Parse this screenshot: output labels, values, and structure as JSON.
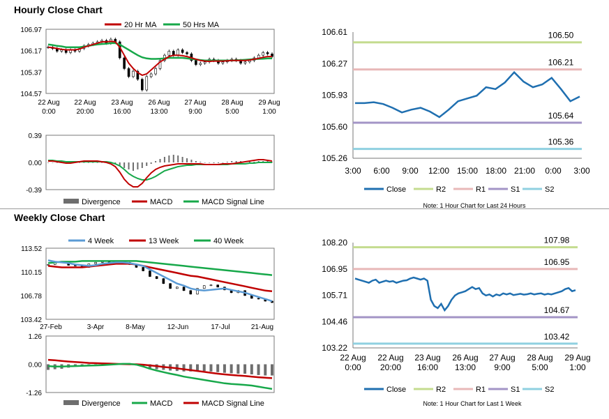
{
  "page": {
    "hourly_title": "Hourly Close Chart",
    "weekly_title": "Weekly Close Chart"
  },
  "colors": {
    "red": "#c00000",
    "green": "#17a84a",
    "blue": "#5b9bd5",
    "close_blue": "#1f6fb0",
    "r2": "#c4dc8f",
    "r1": "#e8b8b8",
    "s1": "#a394c6",
    "s2": "#8fd0e0",
    "bar": "#6e6e6e"
  },
  "chart_data": [
    {
      "id": "hourly_price",
      "type": "line",
      "yticks": [
        "106.97",
        "106.17",
        "105.37",
        "104.57"
      ],
      "ylim": [
        104.57,
        106.97
      ],
      "xticks": [
        [
          "22 Aug",
          "0:00"
        ],
        [
          "22 Aug",
          "20:00"
        ],
        [
          "23 Aug",
          "16:00"
        ],
        [
          "26 Aug",
          "13:00"
        ],
        [
          "27 Aug",
          "9:00"
        ],
        [
          "28 Aug",
          "5:00"
        ],
        [
          "29 Aug",
          "1:00"
        ]
      ],
      "legend": [
        "20 Hr MA",
        "50 Hrs MA"
      ],
      "close": [
        106.3,
        106.25,
        106.15,
        106.2,
        106.1,
        106.2,
        106.15,
        106.25,
        106.35,
        106.4,
        106.45,
        106.5,
        106.55,
        106.45,
        106.6,
        106.5,
        105.9,
        105.5,
        105.2,
        105.4,
        105.1,
        104.7,
        105.2,
        105.3,
        105.5,
        105.8,
        106.0,
        106.15,
        106.0,
        106.2,
        106.1,
        106.05,
        105.8,
        105.65,
        105.7,
        105.75,
        105.85,
        105.8,
        105.7,
        105.75,
        105.8,
        105.85,
        105.8,
        105.7,
        105.75,
        105.8,
        105.9,
        106.0,
        106.1,
        106.05,
        105.95
      ],
      "ma20": [
        106.3,
        106.28,
        106.25,
        106.22,
        106.2,
        106.2,
        106.2,
        106.23,
        106.3,
        106.35,
        106.4,
        106.45,
        106.5,
        106.5,
        106.52,
        106.5,
        106.3,
        106.0,
        105.7,
        105.5,
        105.35,
        105.25,
        105.3,
        105.45,
        105.6,
        105.75,
        105.85,
        105.95,
        106.0,
        106.0,
        105.98,
        105.95,
        105.9,
        105.85,
        105.8,
        105.78,
        105.77,
        105.78,
        105.78,
        105.78,
        105.79,
        105.8,
        105.8,
        105.8,
        105.8,
        105.82,
        105.85,
        105.88,
        105.92,
        105.95,
        105.95
      ],
      "ma50": [
        106.4,
        106.38,
        106.35,
        106.33,
        106.3,
        106.3,
        106.3,
        106.3,
        106.32,
        106.35,
        106.38,
        106.4,
        106.42,
        106.43,
        106.45,
        106.45,
        106.4,
        106.3,
        106.2,
        106.1,
        106.0,
        105.92,
        105.88,
        105.86,
        105.86,
        105.87,
        105.88,
        105.9,
        105.9,
        105.9,
        105.9,
        105.88,
        105.86,
        105.84,
        105.82,
        105.8,
        105.8,
        105.8,
        105.8,
        105.8,
        105.8,
        105.8,
        105.81,
        105.82,
        105.83,
        105.84,
        105.85,
        105.86,
        105.87,
        105.88,
        105.88
      ]
    },
    {
      "id": "hourly_macd",
      "type": "bar",
      "yticks": [
        "0.39",
        "0.00",
        "-0.39"
      ],
      "ylim": [
        -0.39,
        0.39
      ],
      "legend": [
        "Divergence",
        "MACD",
        "MACD Signal Line"
      ],
      "divergence": [
        0,
        0,
        0,
        0,
        0,
        0,
        0,
        0,
        0,
        0,
        0,
        0,
        0,
        0,
        0,
        -0.02,
        -0.05,
        -0.08,
        -0.1,
        -0.12,
        -0.1,
        -0.08,
        -0.05,
        -0.02,
        0.02,
        0.05,
        0.08,
        0.1,
        0.11,
        0.1,
        0.08,
        0.06,
        0.04,
        0.02,
        0.01,
        0.0,
        0.0,
        -0.01,
        -0.01,
        0.0,
        0.01,
        0.02,
        0.02,
        0.02,
        0.01,
        0.01,
        0.01,
        0.02,
        0.02,
        0.02,
        0.01
      ],
      "macd": [
        0.02,
        0.02,
        0.01,
        0.0,
        -0.01,
        -0.01,
        0.0,
        0.01,
        0.02,
        0.02,
        0.02,
        0.02,
        0.01,
        0.0,
        -0.02,
        -0.06,
        -0.14,
        -0.24,
        -0.31,
        -0.35,
        -0.35,
        -0.3,
        -0.22,
        -0.15,
        -0.1,
        -0.07,
        -0.05,
        -0.04,
        -0.03,
        -0.02,
        -0.02,
        -0.02,
        -0.02,
        -0.02,
        -0.02,
        -0.03,
        -0.03,
        -0.03,
        -0.03,
        -0.02,
        -0.02,
        -0.02,
        -0.01,
        0.0,
        0.01,
        0.02,
        0.03,
        0.04,
        0.04,
        0.03,
        0.02
      ],
      "signal": [
        0.03,
        0.03,
        0.02,
        0.02,
        0.01,
        0.01,
        0.01,
        0.01,
        0.01,
        0.01,
        0.01,
        0.01,
        0.01,
        0.01,
        0.0,
        -0.02,
        -0.05,
        -0.1,
        -0.16,
        -0.2,
        -0.23,
        -0.25,
        -0.25,
        -0.23,
        -0.2,
        -0.16,
        -0.12,
        -0.1,
        -0.08,
        -0.06,
        -0.05,
        -0.04,
        -0.04,
        -0.03,
        -0.03,
        -0.03,
        -0.03,
        -0.03,
        -0.03,
        -0.03,
        -0.03,
        -0.02,
        -0.02,
        -0.02,
        -0.02,
        -0.01,
        -0.01,
        0.0,
        0.0,
        0.0,
        0.0
      ]
    },
    {
      "id": "hourly_24h",
      "type": "line",
      "yticks": [
        "106.61",
        "106.27",
        "105.93",
        "105.60",
        "105.26"
      ],
      "ylim": [
        105.26,
        106.61
      ],
      "xticks": [
        "3:00",
        "6:00",
        "9:00",
        "12:00",
        "15:00",
        "18:00",
        "21:00",
        "0:00",
        "3:00"
      ],
      "levels": [
        {
          "name": "R2",
          "value": 106.5,
          "label": "106.50"
        },
        {
          "name": "R1",
          "value": 106.21,
          "label": "106.21"
        },
        {
          "name": "S1",
          "value": 105.64,
          "label": "105.64"
        },
        {
          "name": "S2",
          "value": 105.36,
          "label": "105.36"
        }
      ],
      "legend": [
        "Close",
        "R2",
        "R1",
        "S1",
        "S2"
      ],
      "note": "Note: 1 Hour Chart for Last 24 Hours",
      "close": [
        105.85,
        105.85,
        105.86,
        105.84,
        105.8,
        105.75,
        105.78,
        105.8,
        105.76,
        105.7,
        105.78,
        105.87,
        105.9,
        105.93,
        106.02,
        106.0,
        106.07,
        106.18,
        106.08,
        106.02,
        106.05,
        106.12,
        106.0,
        105.87,
        105.92
      ]
    },
    {
      "id": "weekly_price",
      "type": "line",
      "yticks": [
        "113.52",
        "110.15",
        "106.78",
        "103.42"
      ],
      "ylim": [
        103.42,
        113.52
      ],
      "xticks": [
        "27-Feb",
        "3-Apr",
        "8-May",
        "12-Jun",
        "17-Jul",
        "21-Aug"
      ],
      "legend": [
        "4 Week",
        "13 Week",
        "40 Week"
      ],
      "close": [
        111.2,
        111.5,
        111.6,
        111.1,
        111.0,
        110.8,
        111.3,
        111.5,
        111.6,
        111.5,
        111.7,
        111.5,
        111.2,
        110.8,
        110.3,
        109.5,
        109.2,
        108.5,
        107.8,
        108.0,
        107.5,
        107.0,
        107.8,
        108.2,
        108.3,
        108.0,
        107.6,
        107.2,
        107.5,
        106.8,
        106.4,
        106.3,
        106.0,
        105.8
      ],
      "ma4": [
        111.8,
        111.6,
        111.5,
        111.4,
        111.2,
        111.1,
        111.0,
        111.1,
        111.3,
        111.4,
        111.5,
        111.5,
        111.4,
        111.2,
        111.0,
        110.5,
        110.0,
        109.5,
        109.0,
        108.5,
        108.2,
        107.8,
        107.6,
        107.5,
        107.6,
        107.7,
        107.8,
        107.6,
        107.4,
        107.2,
        106.9,
        106.6,
        106.3,
        106.0
      ],
      "ma13": [
        111.0,
        110.9,
        110.8,
        110.8,
        110.8,
        110.8,
        110.9,
        111.0,
        111.1,
        111.2,
        111.3,
        111.3,
        111.3,
        111.2,
        111.0,
        110.8,
        110.6,
        110.4,
        110.2,
        110.0,
        109.8,
        109.6,
        109.5,
        109.3,
        109.1,
        108.9,
        108.7,
        108.5,
        108.3,
        108.1,
        107.9,
        107.7,
        107.5,
        107.4
      ],
      "ma40": [
        111.4,
        111.5,
        111.6,
        111.6,
        111.6,
        111.7,
        111.7,
        111.7,
        111.7,
        111.7,
        111.7,
        111.7,
        111.7,
        111.7,
        111.6,
        111.5,
        111.4,
        111.3,
        111.2,
        111.1,
        111.0,
        110.9,
        110.8,
        110.7,
        110.6,
        110.5,
        110.4,
        110.3,
        110.2,
        110.1,
        110.0,
        109.9,
        109.8,
        109.7
      ]
    },
    {
      "id": "weekly_macd",
      "type": "bar",
      "yticks": [
        "1.26",
        "0.00",
        "-1.26"
      ],
      "ylim": [
        -1.26,
        1.26
      ],
      "legend": [
        "Divergence",
        "MACD",
        "MACD Signal Line"
      ],
      "divergence": [
        -0.25,
        -0.22,
        -0.2,
        -0.15,
        -0.1,
        -0.08,
        -0.06,
        -0.04,
        -0.02,
        0.0,
        0.02,
        0.04,
        0.05,
        -0.02,
        -0.1,
        -0.18,
        -0.22,
        -0.25,
        -0.28,
        -0.3,
        -0.32,
        -0.32,
        -0.3,
        -0.3,
        -0.32,
        -0.35,
        -0.38,
        -0.4,
        -0.42,
        -0.42,
        -0.45,
        -0.48,
        -0.5,
        -0.5
      ],
      "macd": [
        -0.08,
        -0.1,
        -0.1,
        -0.09,
        -0.08,
        -0.07,
        -0.06,
        -0.05,
        -0.04,
        -0.02,
        0.0,
        0.02,
        0.02,
        -0.02,
        -0.1,
        -0.2,
        -0.28,
        -0.35,
        -0.42,
        -0.48,
        -0.55,
        -0.6,
        -0.65,
        -0.7,
        -0.75,
        -0.8,
        -0.85,
        -0.88,
        -0.9,
        -0.92,
        -0.95,
        -1.0,
        -1.05,
        -1.1
      ],
      "signal": [
        0.2,
        0.18,
        0.15,
        0.12,
        0.1,
        0.08,
        0.06,
        0.05,
        0.04,
        0.03,
        0.02,
        0.01,
        0.0,
        0.0,
        -0.02,
        -0.05,
        -0.08,
        -0.12,
        -0.15,
        -0.18,
        -0.22,
        -0.26,
        -0.3,
        -0.34,
        -0.38,
        -0.42,
        -0.45,
        -0.48,
        -0.5,
        -0.52,
        -0.55,
        -0.58,
        -0.6,
        -0.62
      ]
    },
    {
      "id": "weekly_longterm",
      "type": "line",
      "yticks": [
        "108.20",
        "106.95",
        "105.71",
        "104.46",
        "103.22"
      ],
      "ylim": [
        103.22,
        108.2
      ],
      "xticks": [
        [
          "22 Aug",
          "0:00"
        ],
        [
          "22 Aug",
          "20:00"
        ],
        [
          "23 Aug",
          "16:00"
        ],
        [
          "26 Aug",
          "13:00"
        ],
        [
          "27 Aug",
          "9:00"
        ],
        [
          "28 Aug",
          "5:00"
        ],
        [
          "29 Aug",
          "1:00"
        ]
      ],
      "levels": [
        {
          "name": "R2",
          "value": 107.98,
          "label": "107.98"
        },
        {
          "name": "R1",
          "value": 106.95,
          "label": "106.95"
        },
        {
          "name": "S1",
          "value": 104.67,
          "label": "104.67"
        },
        {
          "name": "S2",
          "value": 103.42,
          "label": "103.42"
        }
      ],
      "legend": [
        "Close",
        "R2",
        "R1",
        "S1",
        "S2"
      ],
      "note": "Note: 1 Hour Chart for Last 1 Week",
      "close": [
        106.5,
        106.45,
        106.4,
        106.35,
        106.3,
        106.4,
        106.45,
        106.3,
        106.35,
        106.4,
        106.35,
        106.38,
        106.3,
        106.35,
        106.4,
        106.42,
        106.5,
        106.55,
        106.5,
        106.45,
        106.5,
        106.4,
        105.5,
        105.2,
        105.1,
        105.3,
        105.0,
        105.2,
        105.5,
        105.7,
        105.8,
        105.85,
        105.9,
        106.0,
        106.1,
        106.0,
        106.05,
        105.8,
        105.7,
        105.75,
        105.65,
        105.75,
        105.7,
        105.8,
        105.75,
        105.8,
        105.72,
        105.75,
        105.78,
        105.74,
        105.76,
        105.8,
        105.75,
        105.78,
        105.8,
        105.74,
        105.78,
        105.75,
        105.8,
        105.85,
        105.9,
        106.0,
        106.05,
        105.9,
        105.95
      ]
    }
  ]
}
